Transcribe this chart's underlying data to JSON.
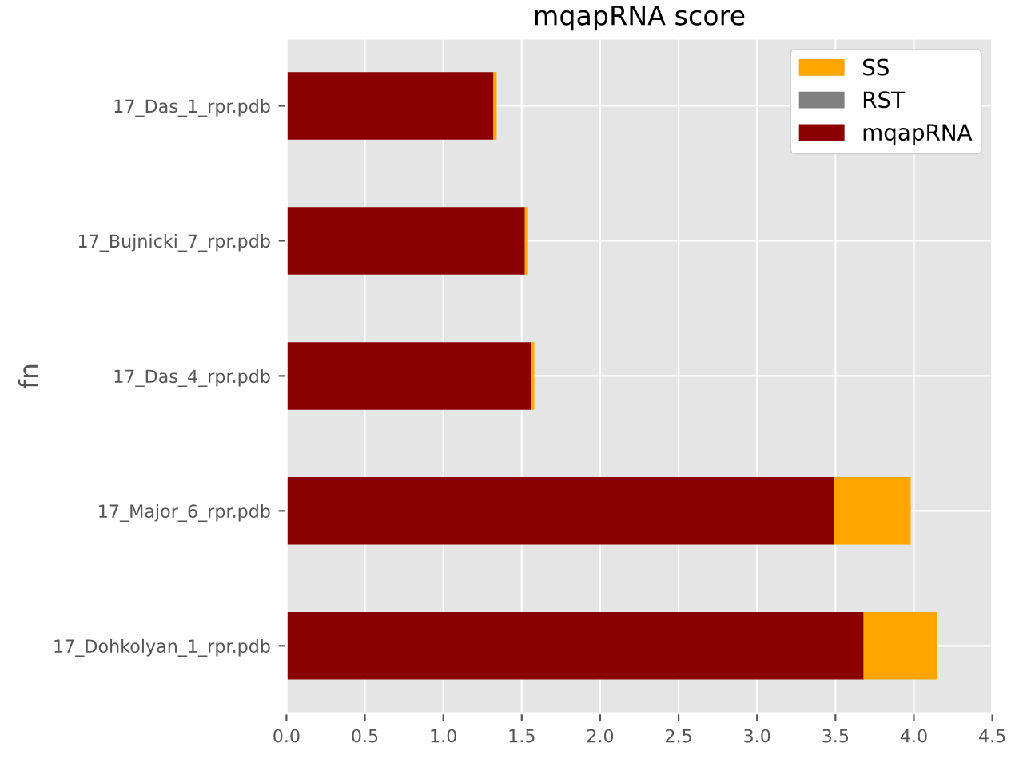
{
  "chart_data": {
    "type": "bar",
    "orientation": "horizontal",
    "stacked": true,
    "title": "mqapRNA score",
    "ylabel": "fn",
    "categories": [
      "17_Das_1_rpr.pdb",
      "17_Bujnicki_7_rpr.pdb",
      "17_Das_4_rpr.pdb",
      "17_Major_6_rpr.pdb",
      "17_Dohkolyan_1_rpr.pdb"
    ],
    "series": [
      {
        "name": "mqapRNA",
        "color": "#8b0000",
        "values": [
          1.32,
          1.52,
          1.56,
          3.49,
          3.68
        ]
      },
      {
        "name": "RST",
        "color": "#808080",
        "values": [
          0,
          0,
          0,
          0,
          0
        ]
      },
      {
        "name": "SS",
        "color": "#ffa500",
        "values": [
          0.02,
          0.02,
          0.02,
          0.49,
          0.47
        ]
      }
    ],
    "xlim": [
      0,
      4.5
    ],
    "xticks": [
      {
        "value": 0,
        "label": "0.0"
      },
      0.5,
      {
        "value": 1,
        "label": "1.0"
      },
      1.5,
      {
        "value": 2,
        "label": "2.0"
      },
      2.5,
      {
        "value": 3,
        "label": "3.0"
      },
      3.5,
      {
        "value": 4,
        "label": "4.0"
      },
      4.5
    ],
    "grid": true,
    "legend": "top right"
  }
}
